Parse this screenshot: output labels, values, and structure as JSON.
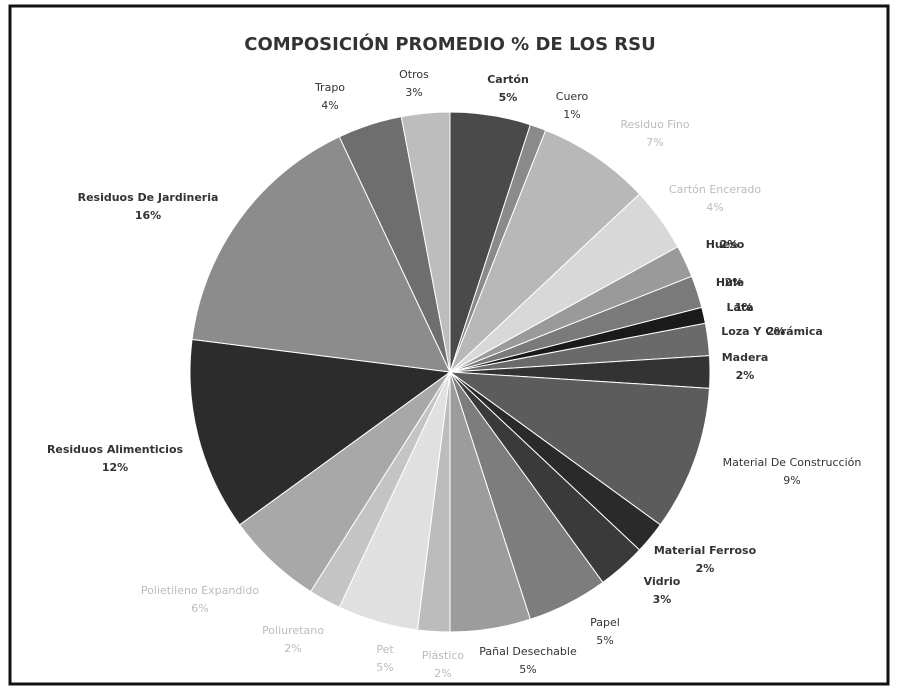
{
  "chart_data": {
    "type": "pie",
    "title": "COMPOSICIÓN PROMEDIO % DE LOS RSU",
    "categories": [
      "Cartón",
      "Cuero",
      "Residuo Fino",
      "Cartón Encerado",
      "Hueso",
      "Hule",
      "Lata",
      "Loza Y Cerámica",
      "Madera",
      "Material De Construcción",
      "Material Ferroso",
      "Vidrio",
      "Papel",
      "Pañal Desechable",
      "Plástico",
      "Pet",
      "Poliuretano",
      "Polietileno Expandido",
      "Residuos Alimenticios",
      "Residuos De Jardineria",
      "Trapo",
      "Otros"
    ],
    "values": [
      5,
      1,
      7,
      4,
      2,
      2,
      1,
      2,
      2,
      9,
      2,
      3,
      5,
      5,
      2,
      5,
      2,
      6,
      12,
      16,
      4,
      3
    ],
    "value_labels": [
      "5%",
      "1%",
      "7%",
      "4%",
      "2%",
      "2%",
      "1%",
      "2%",
      "2%",
      "9%",
      "2%",
      "3%",
      "5%",
      "5%",
      "2%",
      "5%",
      "2%",
      "6%",
      "12%",
      "16%",
      "4%",
      "3%"
    ],
    "colors": [
      "#4a4a4a",
      "#8a8a8a",
      "#b8b8b8",
      "#d8d8d8",
      "#9a9a9a",
      "#7a7a7a",
      "#1a1a1a",
      "#6a6a6a",
      "#333333",
      "#5c5c5c",
      "#2a2a2a",
      "#3a3a3a",
      "#7d7d7d",
      "#9c9c9c",
      "#bcbcbc",
      "#e0e0e0",
      "#c4c4c4",
      "#a8a8a8",
      "#2c2c2c",
      "#8c8c8c",
      "#6e6e6e",
      "#bdbdbd"
    ]
  }
}
